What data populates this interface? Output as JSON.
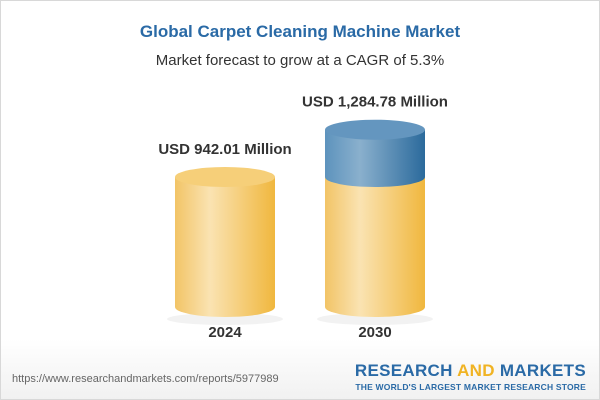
{
  "chart_data": {
    "type": "bar",
    "style": "3d-cylinder",
    "title": "Global Carpet Cleaning Machine Market",
    "subtitle": "Market forecast to grow at a CAGR of 5.3%",
    "categories": [
      "2024",
      "2030"
    ],
    "values": [
      942.01,
      1284.78
    ],
    "data_labels": [
      "USD 942.01 Million",
      "USD 1,284.78 Million"
    ],
    "unit": "USD Million",
    "colors": {
      "base": "#f3c55a",
      "growth": "#3f7fb0",
      "title": "#2a6aa6"
    }
  },
  "footer": {
    "url": "https://www.researchandmarkets.com/reports/5977989",
    "logo_part1": "RESEARCH ",
    "logo_part2": "AND",
    "logo_part3": " MARKETS",
    "tagline": "THE WORLD'S LARGEST MARKET RESEARCH STORE"
  }
}
